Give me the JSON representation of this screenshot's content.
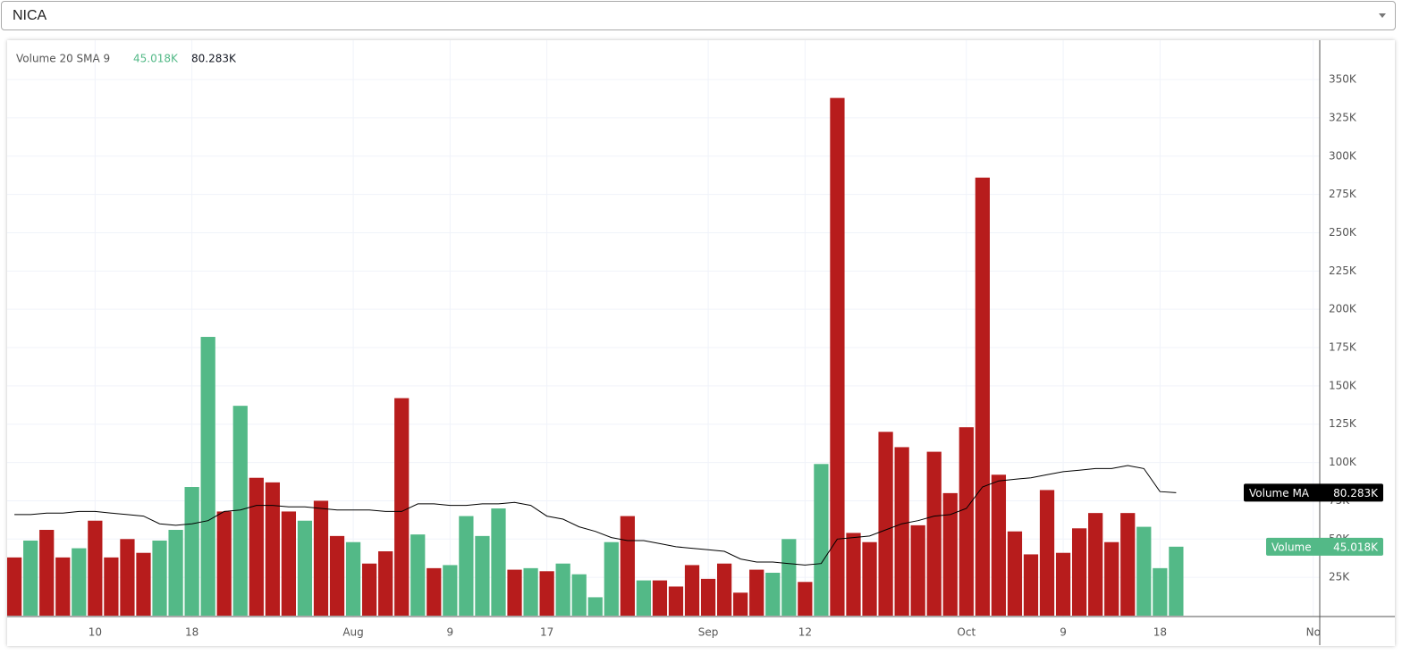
{
  "symbol": "NICA",
  "chart_data": {
    "type": "bar",
    "indicator_title": "Volume 20 SMA 9",
    "xlim": [
      -0.45,
      80.9
    ],
    "xticks": [
      {
        "value": 5,
        "label": "10"
      },
      {
        "value": 11,
        "label": "18"
      },
      {
        "value": 21,
        "label": "Aug"
      },
      {
        "value": 27,
        "label": "9"
      },
      {
        "value": 33,
        "label": "17"
      },
      {
        "value": 43,
        "label": "Sep"
      },
      {
        "value": 49,
        "label": "12"
      },
      {
        "value": 59,
        "label": "Oct"
      },
      {
        "value": 65,
        "label": "9"
      },
      {
        "value": 71,
        "label": "18"
      },
      {
        "value": 80.5,
        "label": "No"
      }
    ],
    "ylim": [
      0,
      375700
    ],
    "yticks": [
      {
        "value": 25000,
        "label": "25K"
      },
      {
        "value": 50000,
        "label": "50K"
      },
      {
        "value": 75000,
        "label": "75K"
      },
      {
        "value": 100000,
        "label": "100K"
      },
      {
        "value": 125000,
        "label": "125K"
      },
      {
        "value": 150000,
        "label": "150K"
      },
      {
        "value": 175000,
        "label": "175K"
      },
      {
        "value": 200000,
        "label": "200K"
      },
      {
        "value": 225000,
        "label": "225K"
      },
      {
        "value": 250000,
        "label": "250K"
      },
      {
        "value": 275000,
        "label": "275K"
      },
      {
        "value": 300000,
        "label": "300K"
      },
      {
        "value": 325000,
        "label": "325K"
      },
      {
        "value": 350000,
        "label": "350K"
      }
    ],
    "grid": true,
    "up_color": "#53b987",
    "down_color": "#b71c1c",
    "series": [
      {
        "name": "Volume",
        "last_label": "45.018K",
        "directions": [
          "down",
          "up",
          "down",
          "down",
          "up",
          "down",
          "down",
          "down",
          "down",
          "up",
          "up",
          "up",
          "up",
          "down",
          "up",
          "down",
          "down",
          "down",
          "up",
          "down",
          "down",
          "up",
          "down",
          "down",
          "down",
          "up",
          "down",
          "up",
          "up",
          "up",
          "up",
          "down",
          "up",
          "down",
          "up",
          "up",
          "up",
          "up",
          "down",
          "up",
          "down",
          "down",
          "down",
          "down",
          "down",
          "down",
          "down",
          "up",
          "up",
          "down",
          "up",
          "down",
          "down",
          "down",
          "down",
          "down",
          "down",
          "down",
          "down",
          "down",
          "down",
          "down",
          "down",
          "down",
          "down",
          "down",
          "down",
          "down",
          "down",
          "down",
          "up",
          "up",
          "up"
        ],
        "values": [
          38000,
          49000,
          56000,
          38000,
          44000,
          62000,
          38000,
          50000,
          41000,
          49000,
          56000,
          84000,
          182000,
          68000,
          137000,
          90000,
          87000,
          68000,
          62000,
          75000,
          52000,
          48000,
          34000,
          42000,
          142000,
          53000,
          31000,
          33000,
          65000,
          52000,
          70000,
          30000,
          31000,
          29000,
          34000,
          27000,
          12000,
          48000,
          65000,
          23000,
          23000,
          19000,
          33000,
          24000,
          34000,
          15000,
          30000,
          28000,
          50000,
          22000,
          99000,
          338000,
          54000,
          48000,
          120000,
          110000,
          59000,
          107000,
          80000,
          123000,
          286000,
          92000,
          55000,
          40000,
          82000,
          41000,
          57000,
          67000,
          48000,
          67000,
          58000,
          31000,
          45018
        ]
      },
      {
        "name": "Volume MA",
        "last_label": "80.283K",
        "color": "#000000",
        "values": [
          66000,
          66000,
          67000,
          67000,
          68000,
          68000,
          67000,
          66000,
          65000,
          60000,
          59000,
          60000,
          62000,
          68000,
          69000,
          72000,
          72000,
          71000,
          71000,
          70000,
          69000,
          69000,
          69000,
          68000,
          68000,
          73000,
          73000,
          72000,
          72000,
          73000,
          73000,
          74000,
          72000,
          65000,
          63000,
          58000,
          55000,
          51000,
          49000,
          49000,
          47000,
          45000,
          44000,
          43000,
          42000,
          37000,
          35000,
          35000,
          34000,
          33000,
          34000,
          50000,
          51000,
          52000,
          56000,
          60000,
          62000,
          65000,
          66000,
          70000,
          84000,
          88000,
          89000,
          90000,
          92000,
          94000,
          95000,
          96000,
          96000,
          98000,
          96000,
          81000,
          80283
        ]
      }
    ]
  }
}
